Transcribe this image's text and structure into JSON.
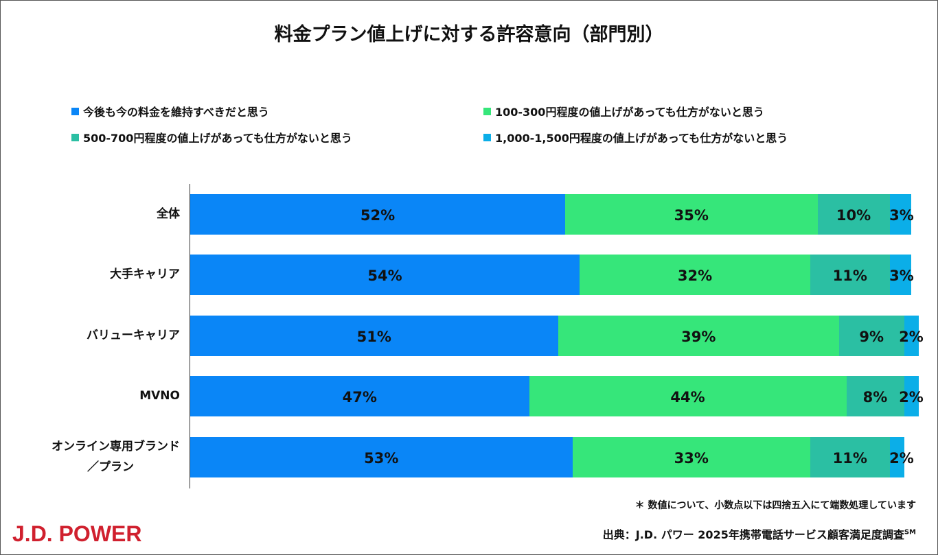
{
  "chart_data": {
    "type": "bar",
    "orientation": "horizontal-stacked-100",
    "title": "料金プラン値上げに対する許容意向（部門別）",
    "categories": [
      "全体",
      "大手キャリア",
      "バリューキャリア",
      "MVNO",
      "オンライン専用ブランド／プラン"
    ],
    "category_lines": [
      [
        "全体"
      ],
      [
        "大手キャリア"
      ],
      [
        "バリューキャリア"
      ],
      [
        "MVNO"
      ],
      [
        "オンライン専用ブランド",
        "／プラン"
      ]
    ],
    "series": [
      {
        "name": "今後も今の料金を維持すべきだと思う",
        "color": "#0A86F7",
        "values": [
          52,
          54,
          51,
          47,
          53
        ]
      },
      {
        "name": "100-300円程度の値上げがあっても仕方がないと思う",
        "color": "#36E67A",
        "values": [
          35,
          32,
          39,
          44,
          33
        ]
      },
      {
        "name": "500-700円程度の値上げがあっても仕方がないと思う",
        "color": "#2BBFA3",
        "values": [
          10,
          11,
          9,
          8,
          11
        ]
      },
      {
        "name": "1,000-1,500円程度の値上げがあっても仕方がないと思う",
        "color": "#0BAEE8",
        "values": [
          3,
          3,
          2,
          2,
          2
        ]
      }
    ],
    "value_suffix": "%",
    "xlim": [
      0,
      100
    ],
    "legend_position": "top",
    "grid": false
  },
  "footnote": "＊ 数値について、小数点以下は四捨五入にて端数処理しています",
  "source": "出典：J.D. パワー 2025年携帯電話サービス顧客満足度調査",
  "source_mark": "SM",
  "logo": "J.D. POWER"
}
